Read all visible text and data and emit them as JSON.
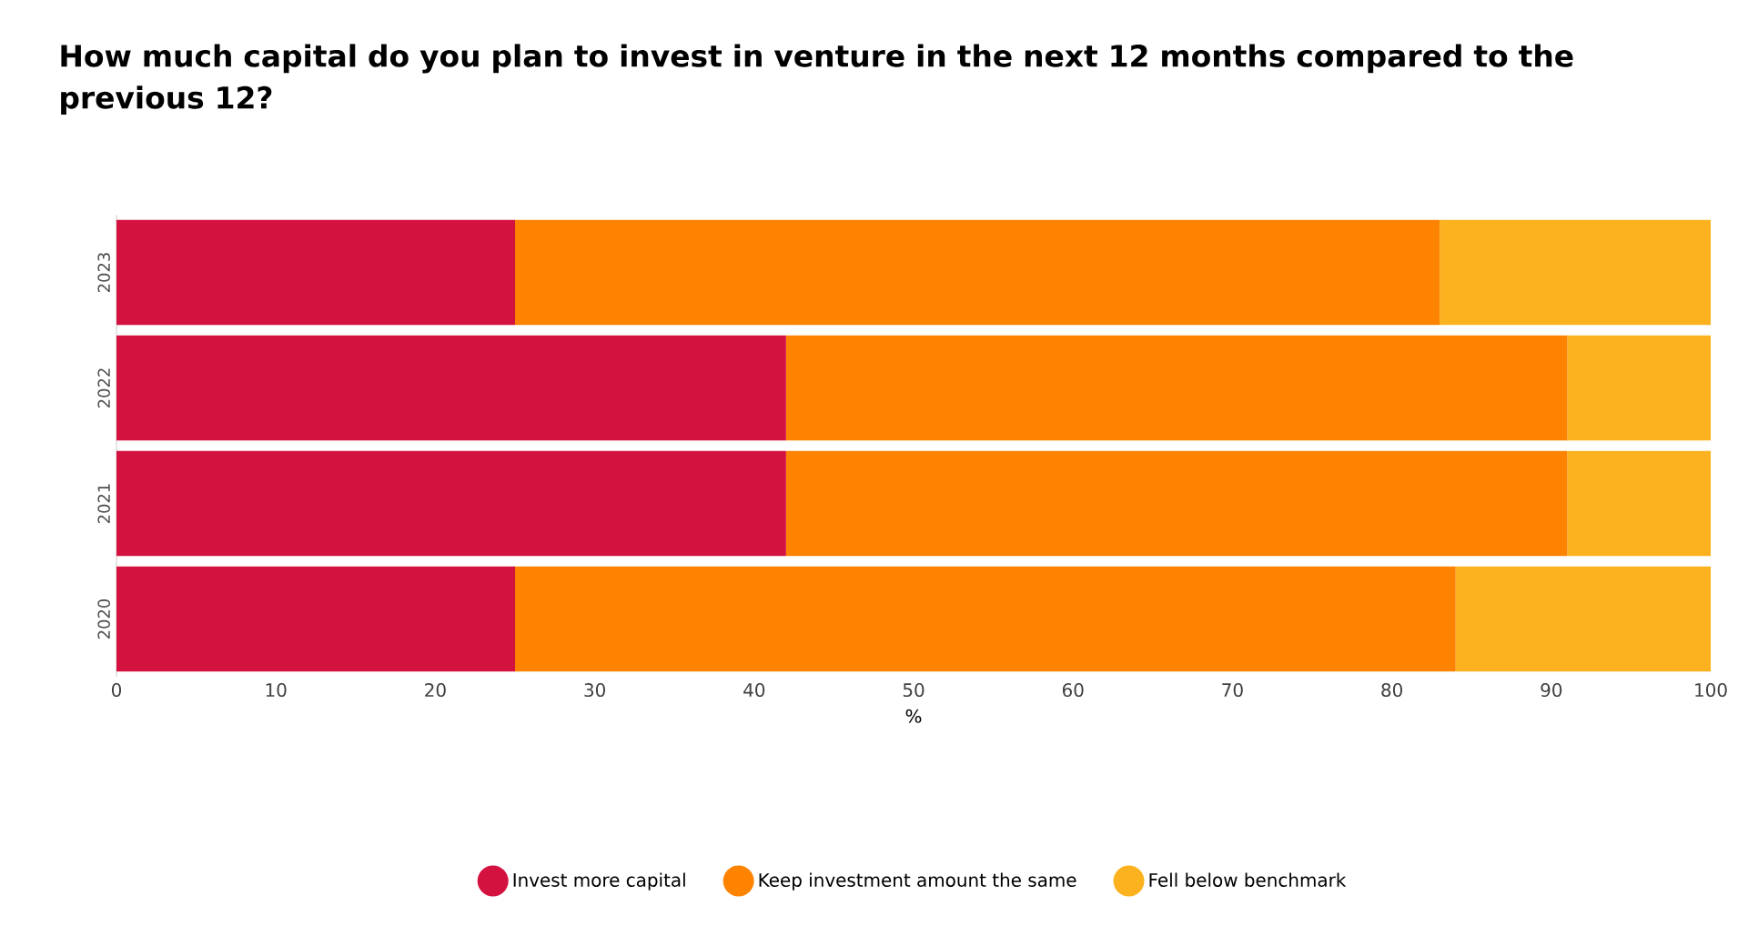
{
  "chart_data": {
    "type": "bar",
    "orientation": "horizontal",
    "stacked": true,
    "title": "How much capital do you plan to invest in venture in the next 12 months compared to the previous 12?",
    "xlabel": "%",
    "categories": [
      "2023",
      "2022",
      "2021",
      "2020"
    ],
    "series": [
      {
        "name": "Invest more capital",
        "color": "#d4123f",
        "values": [
          25,
          42,
          42,
          25
        ]
      },
      {
        "name": "Keep investment amount the same",
        "color": "#fd8300",
        "values": [
          58,
          49,
          49,
          59
        ]
      },
      {
        "name": "Fell below benchmark",
        "color": "#fbb21e",
        "values": [
          17,
          9,
          9,
          16
        ]
      }
    ],
    "xlim": [
      0,
      100
    ],
    "xticks": [
      0,
      10,
      20,
      30,
      40,
      50,
      60,
      70,
      80,
      90,
      100
    ],
    "grid": false,
    "legend": "bottom"
  }
}
